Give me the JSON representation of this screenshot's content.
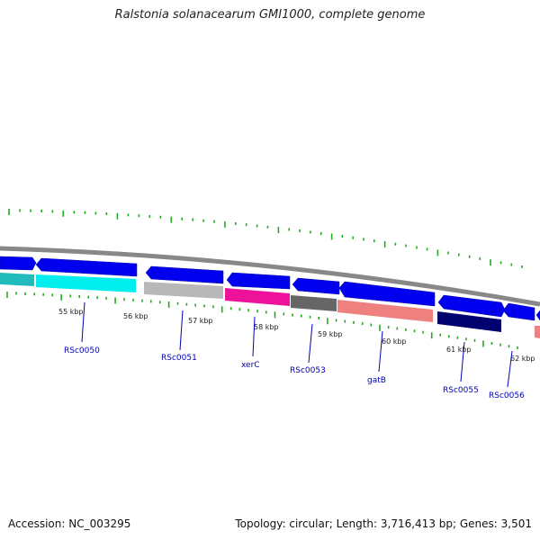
{
  "title": "Ralstonia solanacearum GMI1000, complete genome",
  "footer": {
    "accession": "Accession: NC_003295",
    "summary": "Topology: circular; Length: 3,716,413 bp; Genes: 3,501"
  },
  "ruler_labels": [
    "55 kbp",
    "56 kbp",
    "57 kbp",
    "58 kbp",
    "59 kbp",
    "60 kbp",
    "61 kbp",
    "62 kbp"
  ],
  "gene_labels": [
    "RSc0050",
    "RSc0051",
    "xerC",
    "RSc0053",
    "gatB",
    "RSc0055",
    "RSc0056"
  ],
  "colors": {
    "backbone": "#888888",
    "arrow": "#0000ee",
    "tick": "#22aa22",
    "label": "#0000b8",
    "cyan": "#00eeee",
    "teal": "#22bbbb",
    "silver": "#b8b8b8",
    "magenta": "#ee1199",
    "dimgray": "#666666",
    "salmon": "#ee8080",
    "navy": "#00006e"
  }
}
